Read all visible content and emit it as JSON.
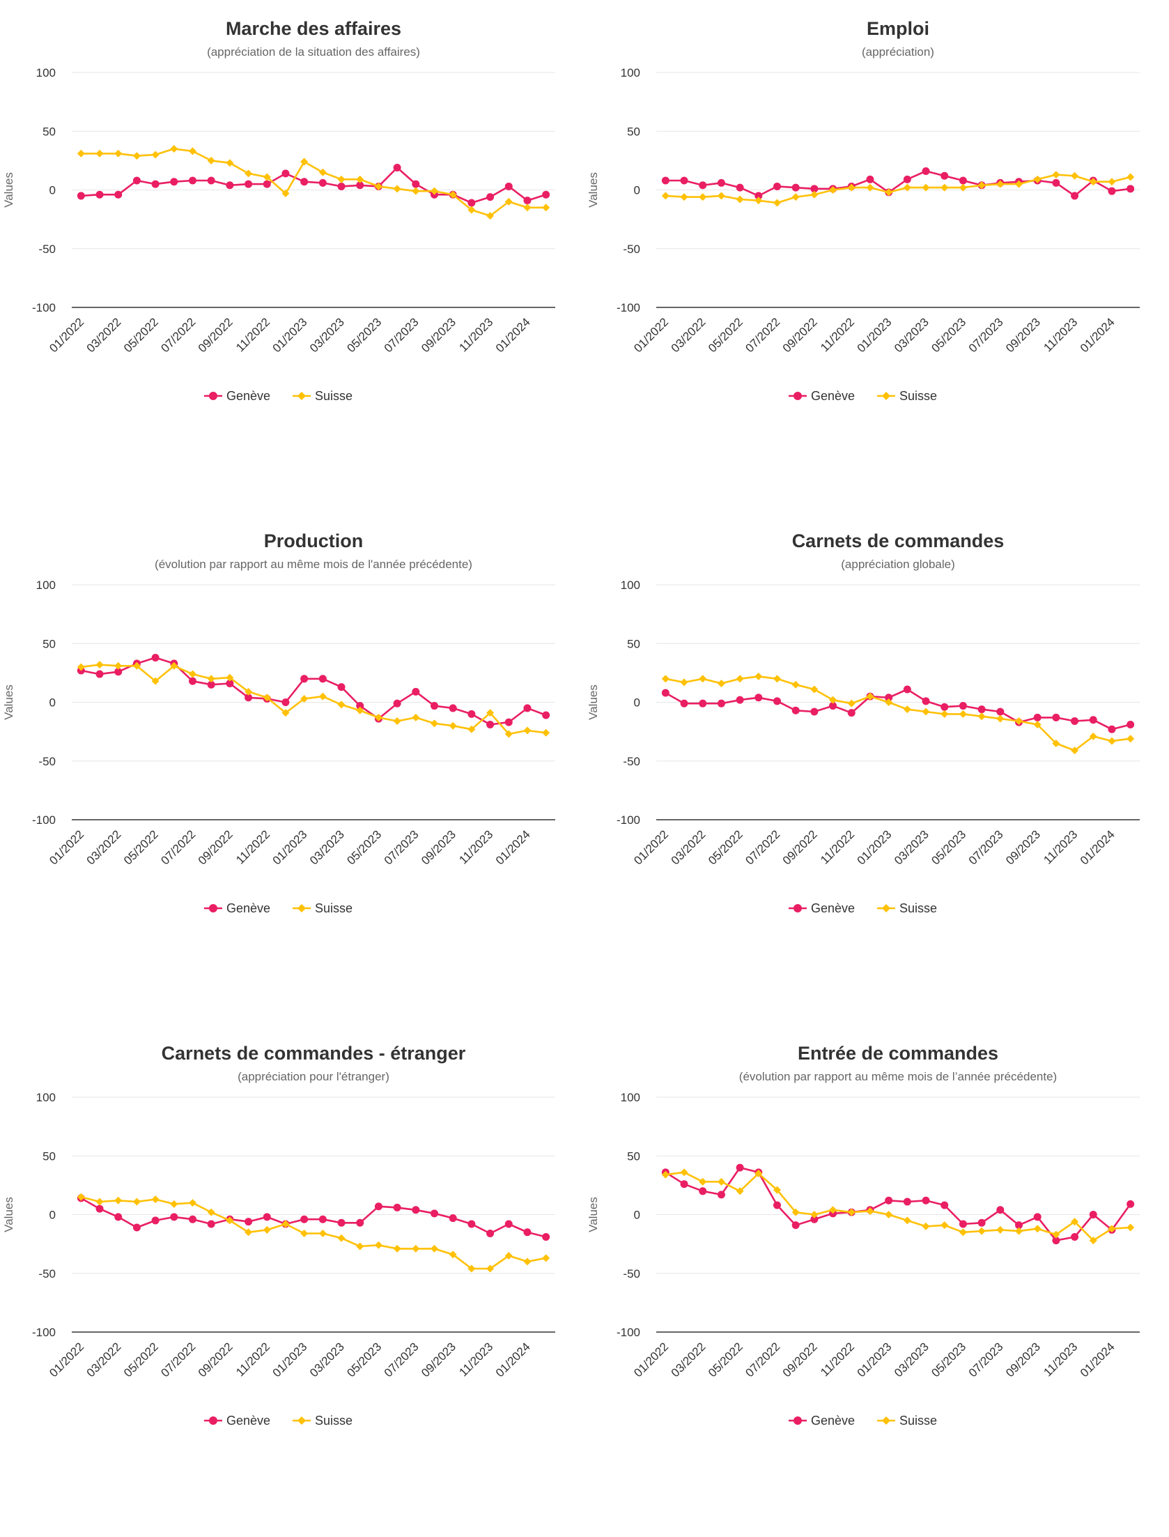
{
  "chart_data": [
    {
      "type": "line",
      "title": "Marche des affaires",
      "subtitle": "(appréciation de la situation des affaires)",
      "ylabel": "Values",
      "ylim": [
        -100,
        100
      ],
      "yticks": [
        100,
        50,
        0,
        -50,
        -100
      ],
      "grid": true,
      "legend": "bottom",
      "x": [
        "01/2022",
        "02/2022",
        "03/2022",
        "04/2022",
        "05/2022",
        "06/2022",
        "07/2022",
        "08/2022",
        "09/2022",
        "10/2022",
        "11/2022",
        "12/2022",
        "01/2023",
        "02/2023",
        "03/2023",
        "04/2023",
        "05/2023",
        "06/2023",
        "07/2023",
        "08/2023",
        "09/2023",
        "10/2023",
        "11/2023",
        "12/2023",
        "01/2024",
        "02/2024"
      ],
      "xticks": [
        "01/2022",
        "03/2022",
        "05/2022",
        "07/2022",
        "09/2022",
        "11/2022",
        "01/2023",
        "03/2023",
        "05/2023",
        "07/2023",
        "09/2023",
        "11/2023",
        "01/2024"
      ],
      "series": [
        {
          "name": "Genève",
          "color": "#e91e63",
          "marker": "circle",
          "values": [
            -5,
            -4,
            -4,
            8,
            5,
            7,
            8,
            8,
            4,
            5,
            5,
            14,
            7,
            6,
            3,
            4,
            3,
            19,
            5,
            -4,
            -4,
            -11,
            -6,
            3,
            -9,
            -4
          ]
        },
        {
          "name": "Suisse",
          "color": "#ffc107",
          "marker": "diamond",
          "values": [
            31,
            31,
            31,
            29,
            30,
            35,
            33,
            25,
            23,
            14,
            11,
            -3,
            24,
            15,
            9,
            9,
            3,
            1,
            -1,
            -1,
            -4,
            -17,
            -22,
            -10,
            -15,
            -15
          ]
        }
      ]
    },
    {
      "type": "line",
      "title": "Emploi",
      "subtitle": "(appréciation)",
      "ylabel": "Values",
      "ylim": [
        -100,
        100
      ],
      "yticks": [
        100,
        50,
        0,
        -50,
        -100
      ],
      "grid": true,
      "legend": "bottom",
      "x": [
        "01/2022",
        "02/2022",
        "03/2022",
        "04/2022",
        "05/2022",
        "06/2022",
        "07/2022",
        "08/2022",
        "09/2022",
        "10/2022",
        "11/2022",
        "12/2022",
        "01/2023",
        "02/2023",
        "03/2023",
        "04/2023",
        "05/2023",
        "06/2023",
        "07/2023",
        "08/2023",
        "09/2023",
        "10/2023",
        "11/2023",
        "12/2023",
        "01/2024",
        "02/2024"
      ],
      "xticks": [
        "01/2022",
        "03/2022",
        "05/2022",
        "07/2022",
        "09/2022",
        "11/2022",
        "01/2023",
        "03/2023",
        "05/2023",
        "07/2023",
        "09/2023",
        "11/2023",
        "01/2024"
      ],
      "series": [
        {
          "name": "Genève",
          "color": "#e91e63",
          "marker": "circle",
          "values": [
            8,
            8,
            4,
            6,
            2,
            -5,
            3,
            2,
            1,
            1,
            3,
            9,
            -2,
            9,
            16,
            12,
            8,
            4,
            6,
            7,
            8,
            6,
            -5,
            8,
            -1,
            1
          ]
        },
        {
          "name": "Suisse",
          "color": "#ffc107",
          "marker": "diamond",
          "values": [
            -5,
            -6,
            -6,
            -5,
            -8,
            -9,
            -11,
            -6,
            -4,
            0,
            2,
            2,
            -2,
            2,
            2,
            2,
            2,
            4,
            5,
            5,
            9,
            13,
            12,
            7,
            7,
            11
          ]
        }
      ]
    },
    {
      "type": "line",
      "title": "Production",
      "subtitle": "(évolution par rapport au même mois de l'année précédente)",
      "ylabel": "Values",
      "ylim": [
        -100,
        100
      ],
      "yticks": [
        100,
        50,
        0,
        -50,
        -100
      ],
      "grid": true,
      "legend": "bottom",
      "x": [
        "01/2022",
        "02/2022",
        "03/2022",
        "04/2022",
        "05/2022",
        "06/2022",
        "07/2022",
        "08/2022",
        "09/2022",
        "10/2022",
        "11/2022",
        "12/2022",
        "01/2023",
        "02/2023",
        "03/2023",
        "04/2023",
        "05/2023",
        "06/2023",
        "07/2023",
        "08/2023",
        "09/2023",
        "10/2023",
        "11/2023",
        "12/2023",
        "01/2024",
        "02/2024"
      ],
      "xticks": [
        "01/2022",
        "03/2022",
        "05/2022",
        "07/2022",
        "09/2022",
        "11/2022",
        "01/2023",
        "03/2023",
        "05/2023",
        "07/2023",
        "09/2023",
        "11/2023",
        "01/2024"
      ],
      "series": [
        {
          "name": "Genève",
          "color": "#e91e63",
          "marker": "circle",
          "values": [
            27,
            24,
            26,
            33,
            38,
            33,
            18,
            15,
            16,
            4,
            3,
            0,
            20,
            20,
            13,
            -3,
            -14,
            -1,
            9,
            -3,
            -5,
            -10,
            -19,
            -17,
            -5,
            -11
          ]
        },
        {
          "name": "Suisse",
          "color": "#ffc107",
          "marker": "diamond",
          "values": [
            30,
            32,
            31,
            31,
            18,
            31,
            24,
            20,
            21,
            9,
            4,
            -9,
            3,
            5,
            -2,
            -7,
            -13,
            -16,
            -13,
            -18,
            -20,
            -23,
            -9,
            -27,
            -24,
            -26
          ]
        }
      ]
    },
    {
      "type": "line",
      "title": "Carnets de commandes",
      "subtitle": "(appréciation globale)",
      "ylabel": "Values",
      "ylim": [
        -100,
        100
      ],
      "yticks": [
        100,
        50,
        0,
        -50,
        -100
      ],
      "grid": true,
      "legend": "bottom",
      "x": [
        "01/2022",
        "02/2022",
        "03/2022",
        "04/2022",
        "05/2022",
        "06/2022",
        "07/2022",
        "08/2022",
        "09/2022",
        "10/2022",
        "11/2022",
        "12/2022",
        "01/2023",
        "02/2023",
        "03/2023",
        "04/2023",
        "05/2023",
        "06/2023",
        "07/2023",
        "08/2023",
        "09/2023",
        "10/2023",
        "11/2023",
        "12/2023",
        "01/2024",
        "02/2024"
      ],
      "xticks": [
        "01/2022",
        "03/2022",
        "05/2022",
        "07/2022",
        "09/2022",
        "11/2022",
        "01/2023",
        "03/2023",
        "05/2023",
        "07/2023",
        "09/2023",
        "11/2023",
        "01/2024"
      ],
      "series": [
        {
          "name": "Genève",
          "color": "#e91e63",
          "marker": "circle",
          "values": [
            8,
            -1,
            -1,
            -1,
            2,
            4,
            1,
            -7,
            -8,
            -3,
            -9,
            5,
            4,
            11,
            1,
            -4,
            -3,
            -6,
            -8,
            -17,
            -13,
            -13,
            -16,
            -15,
            -23,
            -19
          ]
        },
        {
          "name": "Suisse",
          "color": "#ffc107",
          "marker": "diamond",
          "values": [
            20,
            17,
            20,
            16,
            20,
            22,
            20,
            15,
            11,
            2,
            -1,
            5,
            0,
            -6,
            -8,
            -10,
            -10,
            -12,
            -14,
            -16,
            -19,
            -35,
            -41,
            -29,
            -33,
            -31
          ]
        }
      ]
    },
    {
      "type": "line",
      "title": "Carnets de commandes - étranger",
      "subtitle": "(appréciation pour l'étranger)",
      "ylabel": "Values",
      "ylim": [
        -100,
        100
      ],
      "yticks": [
        100,
        50,
        0,
        -50,
        -100
      ],
      "grid": true,
      "legend": "bottom",
      "x": [
        "01/2022",
        "02/2022",
        "03/2022",
        "04/2022",
        "05/2022",
        "06/2022",
        "07/2022",
        "08/2022",
        "09/2022",
        "10/2022",
        "11/2022",
        "12/2022",
        "01/2023",
        "02/2023",
        "03/2023",
        "04/2023",
        "05/2023",
        "06/2023",
        "07/2023",
        "08/2023",
        "09/2023",
        "10/2023",
        "11/2023",
        "12/2023",
        "01/2024",
        "02/2024"
      ],
      "xticks": [
        "01/2022",
        "03/2022",
        "05/2022",
        "07/2022",
        "09/2022",
        "11/2022",
        "01/2023",
        "03/2023",
        "05/2023",
        "07/2023",
        "09/2023",
        "11/2023",
        "01/2024"
      ],
      "series": [
        {
          "name": "Genève",
          "color": "#e91e63",
          "marker": "circle",
          "values": [
            14,
            5,
            -2,
            -11,
            -5,
            -2,
            -4,
            -8,
            -4,
            -6,
            -2,
            -8,
            -4,
            -4,
            -7,
            -7,
            7,
            6,
            4,
            1,
            -3,
            -8,
            -16,
            -8,
            -15,
            -19
          ]
        },
        {
          "name": "Suisse",
          "color": "#ffc107",
          "marker": "diamond",
          "values": [
            15,
            11,
            12,
            11,
            13,
            9,
            10,
            2,
            -5,
            -15,
            -13,
            -8,
            -16,
            -16,
            -20,
            -27,
            -26,
            -29,
            -29,
            -29,
            -34,
            -46,
            -46,
            -35,
            -40,
            -37
          ]
        }
      ]
    },
    {
      "type": "line",
      "title": "Entrée de commandes",
      "subtitle": "(évolution par rapport au même mois de l’année précédente)",
      "ylabel": "Values",
      "ylim": [
        -100,
        100
      ],
      "yticks": [
        100,
        50,
        0,
        -50,
        -100
      ],
      "grid": true,
      "legend": "bottom",
      "x": [
        "01/2022",
        "02/2022",
        "03/2022",
        "04/2022",
        "05/2022",
        "06/2022",
        "07/2022",
        "08/2022",
        "09/2022",
        "10/2022",
        "11/2022",
        "12/2022",
        "01/2023",
        "02/2023",
        "03/2023",
        "04/2023",
        "05/2023",
        "06/2023",
        "07/2023",
        "08/2023",
        "09/2023",
        "10/2023",
        "11/2023",
        "12/2023",
        "01/2024",
        "02/2024"
      ],
      "xticks": [
        "01/2022",
        "03/2022",
        "05/2022",
        "07/2022",
        "09/2022",
        "11/2022",
        "01/2023",
        "03/2023",
        "05/2023",
        "07/2023",
        "09/2023",
        "11/2023",
        "01/2024"
      ],
      "series": [
        {
          "name": "Genève",
          "color": "#e91e63",
          "marker": "circle",
          "values": [
            36,
            26,
            20,
            17,
            40,
            36,
            8,
            -9,
            -4,
            1,
            2,
            4,
            12,
            11,
            12,
            8,
            -8,
            -7,
            4,
            -9,
            -2,
            -22,
            -19,
            0,
            -13,
            9
          ]
        },
        {
          "name": "Suisse",
          "color": "#ffc107",
          "marker": "diamond",
          "values": [
            34,
            36,
            28,
            28,
            20,
            35,
            21,
            2,
            0,
            4,
            2,
            3,
            0,
            -5,
            -10,
            -9,
            -15,
            -14,
            -13,
            -14,
            -12,
            -17,
            -6,
            -22,
            -12,
            -11
          ]
        }
      ]
    }
  ]
}
